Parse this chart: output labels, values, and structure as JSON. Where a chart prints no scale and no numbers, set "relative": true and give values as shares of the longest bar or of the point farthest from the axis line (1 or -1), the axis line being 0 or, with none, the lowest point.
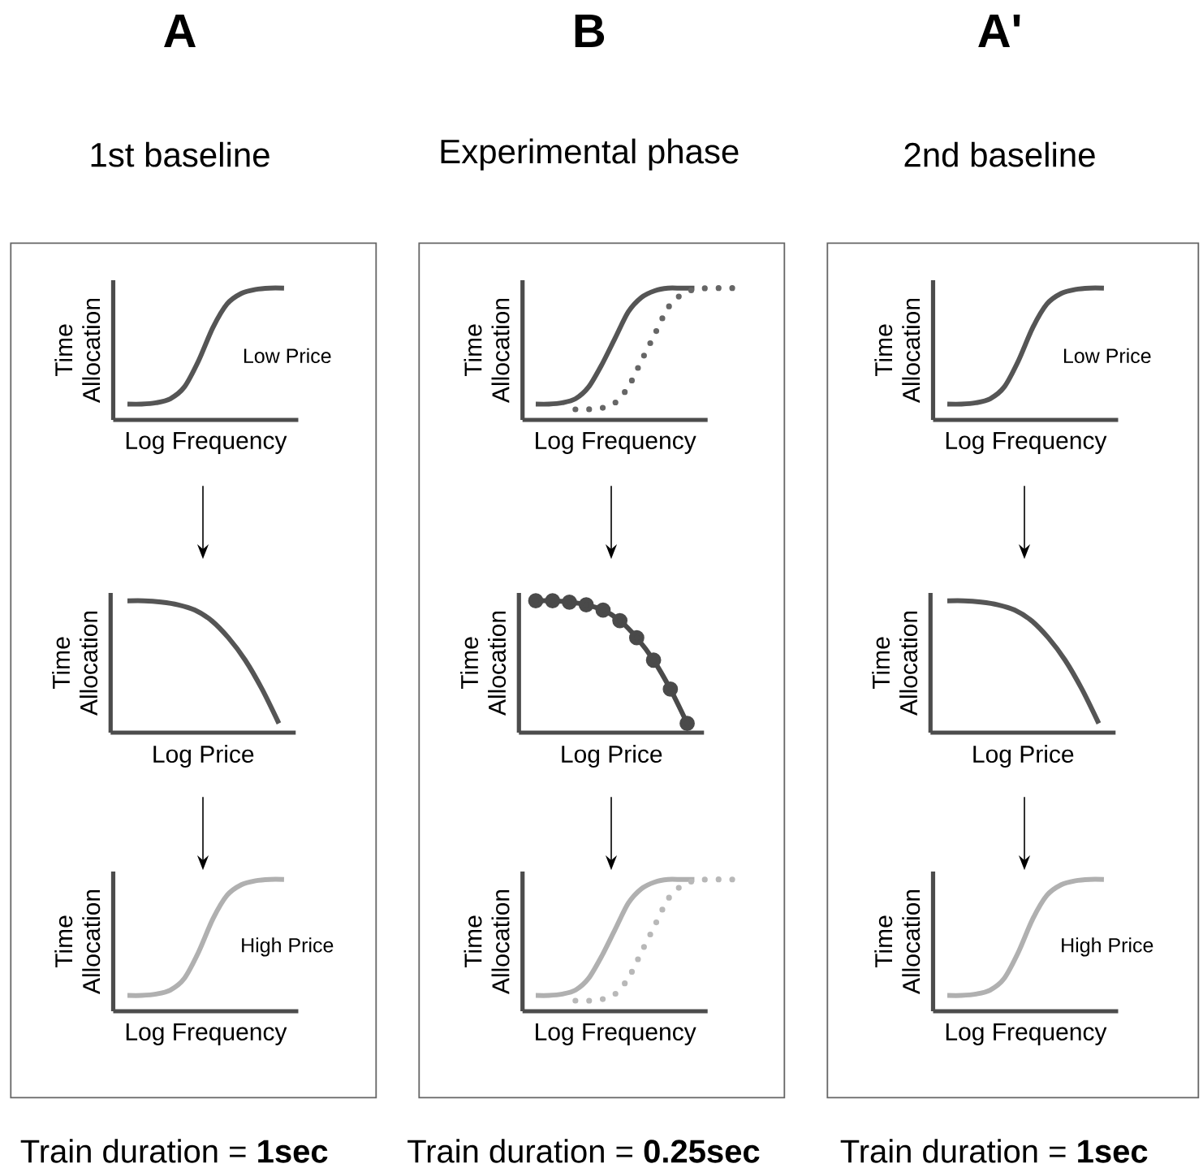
{
  "chart_data": [
    {
      "type": "line",
      "relative": true,
      "title": "A",
      "subtitle": "1st baseline",
      "xlabel": "Log Frequency",
      "ylabel": "Time Allocation",
      "annotations": [
        "Low Price"
      ],
      "categories": [
        null,
        null,
        null,
        null,
        null,
        null,
        null,
        null,
        null,
        null,
        null,
        null
      ],
      "series": [
        {
          "color": "#555555",
          "values": [
            0.12,
            0.12,
            0.13,
            0.16,
            0.25,
            0.45,
            0.7,
            0.88,
            0.96,
            0.99,
            1,
            1
          ]
        }
      ]
    },
    {
      "type": "line",
      "relative": true,
      "xlabel": "Log Price",
      "ylabel": "Time Allocation",
      "categories": [
        null,
        null,
        null,
        null,
        null,
        null,
        null,
        null,
        null,
        null
      ],
      "series": [
        {
          "color": "#555555",
          "values": [
            1,
            1,
            0.99,
            0.97,
            0.93,
            0.85,
            0.72,
            0.55,
            0.33,
            0.07
          ]
        }
      ]
    },
    {
      "type": "line",
      "relative": true,
      "xlabel": "Log Frequency",
      "ylabel": "Time Allocation",
      "annotations": [
        "High Price",
        "Train duration = **1sec**"
      ],
      "categories": [
        null,
        null,
        null,
        null,
        null,
        null,
        null,
        null,
        null,
        null,
        null,
        null
      ],
      "series": [
        {
          "color": "#b0b0b0",
          "values": [
            0.12,
            0.12,
            0.13,
            0.16,
            0.25,
            0.45,
            0.7,
            0.88,
            0.96,
            0.99,
            1,
            1
          ]
        }
      ]
    },
    {
      "type": "line",
      "relative": true,
      "title": "B",
      "subtitle": "Experimental phase",
      "xlabel": "Log Frequency",
      "ylabel": "Time Allocation",
      "categories": [
        null,
        null,
        null,
        null,
        null,
        null,
        null,
        null,
        null,
        null,
        null,
        null,
        null,
        null,
        null,
        null
      ],
      "series": [
        {
          "color": "#555555",
          "values": [
            0.12,
            0.12,
            0.13,
            0.16,
            0.25,
            0.42,
            0.62,
            0.82,
            0.93,
            0.98,
            1,
            1,
            1,
            null,
            null,
            null
          ]
        },
        {
          "color": "#666666",
          "line_style": "dotted",
          "values": [
            null,
            null,
            null,
            0.08,
            0.08,
            0.09,
            0.13,
            0.25,
            0.45,
            0.65,
            0.85,
            0.95,
            0.99,
            1,
            1,
            1
          ]
        }
      ]
    },
    {
      "type": "line",
      "relative": true,
      "xlabel": "Log Price",
      "ylabel": "Time Allocation",
      "categories": [
        null,
        null,
        null,
        null,
        null,
        null,
        null,
        null,
        null,
        null
      ],
      "series": [
        {
          "color": "#4a4a4a",
          "marker": "circle",
          "values": [
            1,
            1,
            0.99,
            0.97,
            0.93,
            0.85,
            0.72,
            0.55,
            0.33,
            0.07
          ]
        }
      ]
    },
    {
      "type": "line",
      "relative": true,
      "xlabel": "Log Frequency",
      "ylabel": "Time Allocation",
      "annotations": [
        "Train duration = **0.25sec**"
      ],
      "categories": [
        null,
        null,
        null,
        null,
        null,
        null,
        null,
        null,
        null,
        null,
        null,
        null,
        null,
        null,
        null,
        null
      ],
      "series": [
        {
          "color": "#b0b0b0",
          "values": [
            0.12,
            0.12,
            0.13,
            0.16,
            0.25,
            0.42,
            0.62,
            0.82,
            0.93,
            0.98,
            1,
            1,
            1,
            null,
            null,
            null
          ]
        },
        {
          "color": "#b8b8b8",
          "line_style": "dotted",
          "values": [
            null,
            null,
            null,
            0.08,
            0.08,
            0.09,
            0.13,
            0.25,
            0.45,
            0.65,
            0.85,
            0.95,
            0.99,
            1,
            1,
            1
          ]
        }
      ]
    },
    {
      "type": "line",
      "relative": true,
      "title": "A'",
      "subtitle": "2nd baseline",
      "xlabel": "Log Frequency",
      "ylabel": "Time Allocation",
      "annotations": [
        "Low Price"
      ],
      "categories": [
        null,
        null,
        null,
        null,
        null,
        null,
        null,
        null,
        null,
        null,
        null,
        null
      ],
      "series": [
        {
          "color": "#555555",
          "values": [
            0.12,
            0.12,
            0.13,
            0.16,
            0.25,
            0.45,
            0.7,
            0.88,
            0.96,
            0.99,
            1,
            1
          ]
        }
      ]
    },
    {
      "type": "line",
      "relative": true,
      "xlabel": "Log Price",
      "ylabel": "Time Allocation",
      "categories": [
        null,
        null,
        null,
        null,
        null,
        null,
        null,
        null,
        null,
        null
      ],
      "series": [
        {
          "color": "#555555",
          "values": [
            1,
            1,
            0.99,
            0.97,
            0.93,
            0.85,
            0.72,
            0.55,
            0.33,
            0.07
          ]
        }
      ]
    },
    {
      "type": "line",
      "relative": true,
      "xlabel": "Log Frequency",
      "ylabel": "Time Allocation",
      "annotations": [
        "High Price",
        "Train duration = **1sec**"
      ],
      "categories": [
        null,
        null,
        null,
        null,
        null,
        null,
        null,
        null,
        null,
        null,
        null,
        null
      ],
      "series": [
        {
          "color": "#b0b0b0",
          "values": [
            0.12,
            0.12,
            0.13,
            0.16,
            0.25,
            0.45,
            0.7,
            0.88,
            0.96,
            0.99,
            1,
            1
          ]
        }
      ]
    }
  ]
}
